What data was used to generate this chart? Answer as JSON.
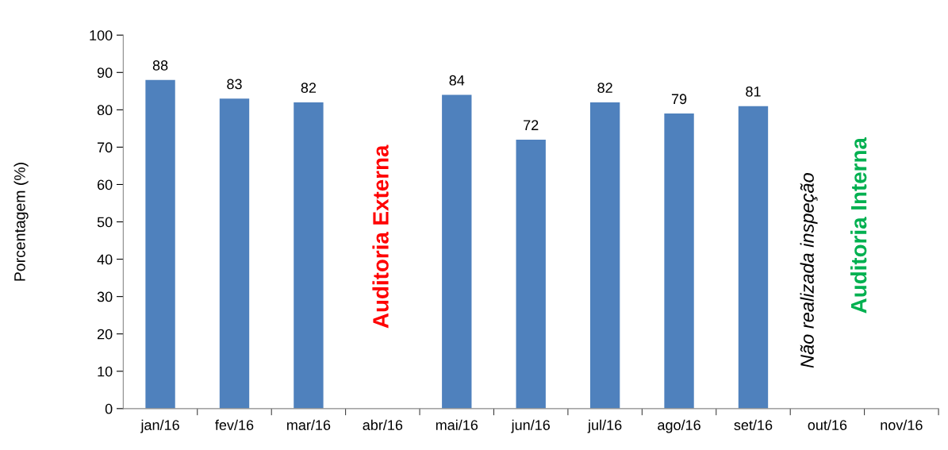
{
  "chart_data": {
    "type": "bar",
    "ylabel": "Porcentagem (%)",
    "categories": [
      "jan/16",
      "fev/16",
      "mar/16",
      "abr/16",
      "mai/16",
      "jun/16",
      "jul/16",
      "ago/16",
      "set/16",
      "out/16",
      "nov/16"
    ],
    "values": [
      88,
      83,
      82,
      null,
      84,
      72,
      82,
      79,
      81,
      null,
      null
    ],
    "color": "#4f81bd",
    "data_labels": true,
    "ylim": [
      0,
      100
    ],
    "yticks": [
      0,
      10,
      20,
      30,
      40,
      50,
      60,
      70,
      80,
      90,
      100
    ],
    "grid": false,
    "annotations": [
      "Auditoria Externa",
      "Não realizada inspeção",
      "Auditoria Interna"
    ]
  }
}
